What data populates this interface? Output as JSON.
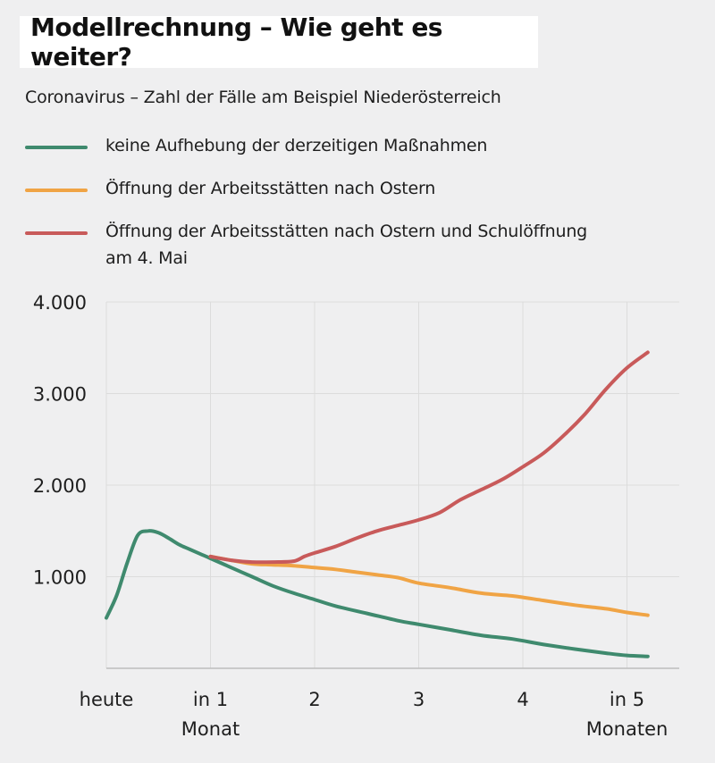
{
  "title": "Modellrechnung – Wie geht es weiter?",
  "subtitle": "Coronavirus – Zahl der Fälle am Beispiel Niederösterreich",
  "colors": {
    "background": "#efeff0",
    "grid": "#dcdcdc",
    "axis": "#bdbdbd"
  },
  "chart_data": {
    "type": "line",
    "ylim": [
      0,
      4000
    ],
    "yticks": [
      {
        "value": 1000,
        "label": "1.000"
      },
      {
        "value": 2000,
        "label": "2.000"
      },
      {
        "value": 3000,
        "label": "3.000"
      },
      {
        "value": 4000,
        "label": "4.000"
      }
    ],
    "xlim": [
      0,
      5.5
    ],
    "xticks": [
      {
        "value": 0,
        "label": "heute",
        "sublabel": ""
      },
      {
        "value": 1,
        "label": "in 1",
        "sublabel": "Monat"
      },
      {
        "value": 2,
        "label": "2",
        "sublabel": ""
      },
      {
        "value": 3,
        "label": "3",
        "sublabel": ""
      },
      {
        "value": 4,
        "label": "4",
        "sublabel": ""
      },
      {
        "value": 5,
        "label": "in 5",
        "sublabel": "Monaten"
      }
    ],
    "grid": true,
    "series": [
      {
        "name": "keine Aufhebung der derzeitigen Maßnahmen",
        "color": "#3f8a6e",
        "x": [
          0,
          0.1,
          0.2,
          0.3,
          0.4,
          0.5,
          0.6,
          0.7,
          0.8,
          0.9,
          1.0,
          1.2,
          1.4,
          1.6,
          1.8,
          2.0,
          2.2,
          2.5,
          2.8,
          3.0,
          3.3,
          3.6,
          3.9,
          4.2,
          4.5,
          4.8,
          5.0,
          5.2
        ],
        "values": [
          550,
          800,
          1150,
          1450,
          1500,
          1480,
          1420,
          1350,
          1300,
          1250,
          1200,
          1100,
          1000,
          900,
          820,
          750,
          680,
          600,
          520,
          480,
          420,
          360,
          320,
          260,
          210,
          165,
          140,
          130
        ]
      },
      {
        "name": "Öffnung der Arbeitsstätten nach Ostern",
        "color": "#f0a445",
        "x": [
          1.0,
          1.2,
          1.4,
          1.6,
          1.8,
          2.0,
          2.2,
          2.4,
          2.6,
          2.8,
          3.0,
          3.3,
          3.6,
          3.9,
          4.2,
          4.5,
          4.8,
          5.0,
          5.2
        ],
        "values": [
          1220,
          1180,
          1140,
          1130,
          1120,
          1100,
          1080,
          1050,
          1020,
          990,
          930,
          880,
          820,
          790,
          740,
          690,
          650,
          610,
          580
        ]
      },
      {
        "name": "Öffnung der Arbeitsstätten nach Ostern und Schulöffnung am 4. Mai",
        "color": "#c85a5a",
        "x": [
          1.0,
          1.2,
          1.4,
          1.6,
          1.8,
          1.9,
          2.0,
          2.2,
          2.4,
          2.6,
          2.8,
          3.0,
          3.2,
          3.4,
          3.6,
          3.8,
          4.0,
          4.2,
          4.4,
          4.6,
          4.8,
          5.0,
          5.2
        ],
        "values": [
          1220,
          1180,
          1160,
          1160,
          1170,
          1220,
          1260,
          1330,
          1420,
          1500,
          1560,
          1620,
          1700,
          1840,
          1950,
          2060,
          2200,
          2350,
          2550,
          2780,
          3050,
          3280,
          3450
        ]
      }
    ]
  }
}
